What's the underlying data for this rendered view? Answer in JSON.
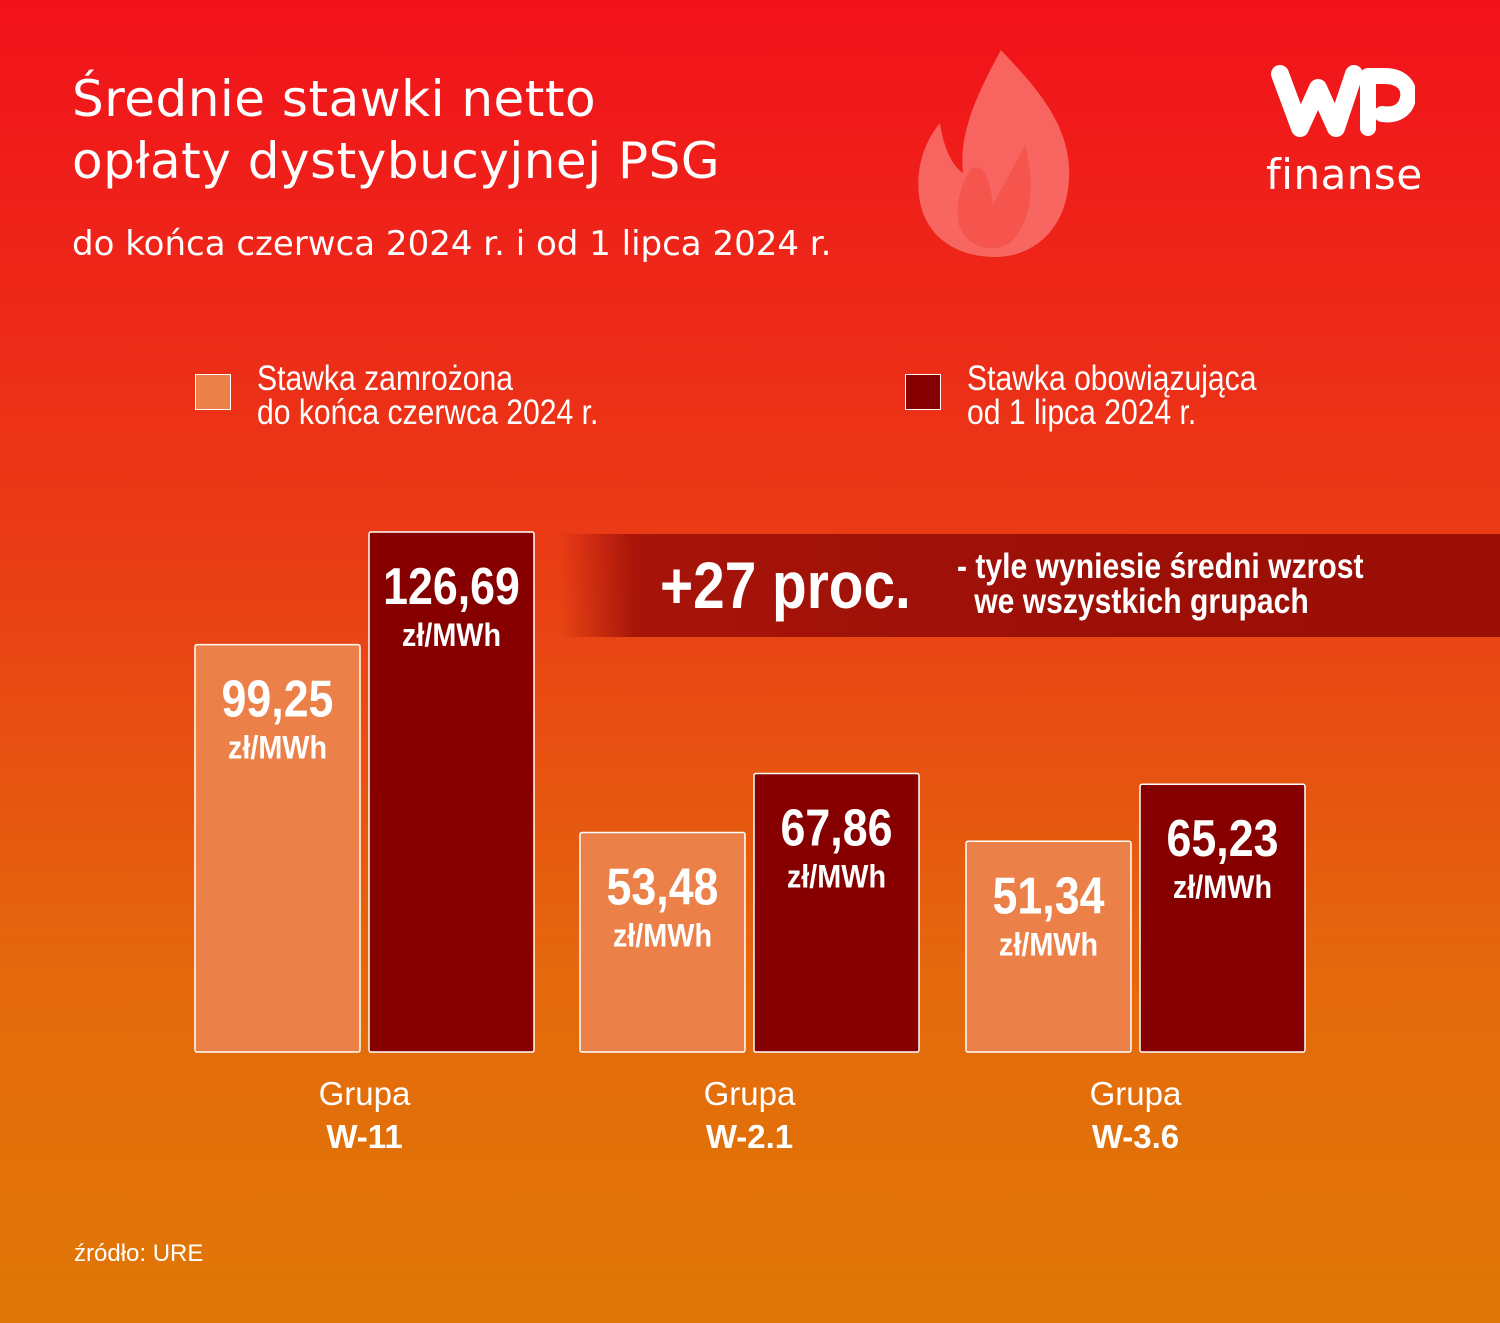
{
  "title_lines": [
    "Średnie stawki netto",
    "opłaty dystybucyjnej PSG"
  ],
  "subtitle": "do końca czerwca 2024 r. i od 1 lipca 2024 r.",
  "logo": {
    "text": "finanse",
    "icon": "wp-logo-icon"
  },
  "decoration": {
    "icon": "flame-icon"
  },
  "legend": [
    {
      "lines": [
        "Stawka zamrożona",
        "do końca czerwca 2024 r."
      ],
      "color": "#eb8049"
    },
    {
      "lines": [
        "Stawka obowiązująca",
        "od 1 lipca 2024 r."
      ],
      "color": "#870000"
    }
  ],
  "banner": {
    "highlight": "+27 proc.",
    "lines": [
      "- tyle wyniesie średni wzrost",
      "we wszystkich grupach"
    ]
  },
  "chart_data": {
    "type": "bar",
    "categories": [
      {
        "label": "Grupa",
        "code": "W-11"
      },
      {
        "label": "Grupa",
        "code": "W-2.1"
      },
      {
        "label": "Grupa",
        "code": "W-3.6"
      }
    ],
    "series": [
      {
        "name": "Stawka zamrożona do końca czerwca 2024 r.",
        "values": [
          99.25,
          53.48,
          51.34
        ],
        "labels": [
          "99,25",
          "53,48",
          "51,34"
        ],
        "color": "#eb8049"
      },
      {
        "name": "Stawka obowiązująca od 1 lipca 2024 r.",
        "values": [
          126.69,
          67.86,
          65.23
        ],
        "labels": [
          "126,69",
          "67,86",
          "65,23"
        ],
        "color": "#870000"
      }
    ],
    "unit": "zł/MWh",
    "xlabel": "",
    "ylabel": "",
    "grid": false,
    "legend_position": "top"
  },
  "source": "źródło: URE"
}
